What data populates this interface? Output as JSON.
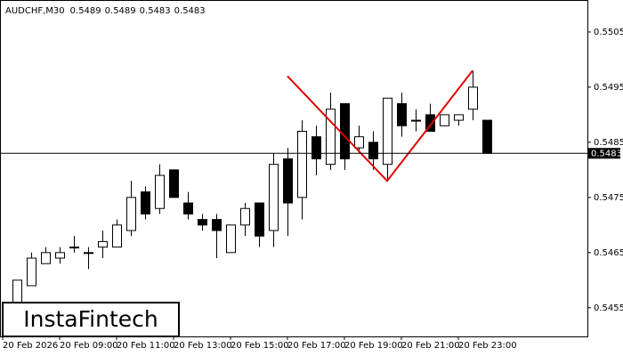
{
  "chart_data": {
    "type": "candlestick",
    "symbol": "AUDCHF,M30",
    "logo": "InstaFintech",
    "open": [
      0.5456,
      0.5459,
      0.5463,
      0.5464,
      0.5466,
      0.5465,
      0.5466,
      0.5466,
      0.5469,
      0.5476,
      0.5473,
      0.548,
      0.5474,
      0.5471,
      0.5471,
      0.5465,
      0.547,
      0.5474,
      0.5469,
      0.5482,
      0.5475,
      0.5486,
      0.5481,
      0.5492,
      0.5484,
      0.5485,
      0.5481,
      0.5492,
      0.5489,
      0.549,
      0.5488,
      0.5489,
      0.5491,
      0.5489
    ],
    "high": [
      0.546,
      0.5465,
      0.5466,
      0.5466,
      0.5468,
      0.5466,
      0.5469,
      0.5471,
      0.5478,
      0.5477,
      0.5481,
      0.548,
      0.5476,
      0.5472,
      0.5472,
      0.547,
      0.5474,
      0.5474,
      0.5483,
      0.5484,
      0.5489,
      0.5488,
      0.5494,
      0.5492,
      0.5488,
      0.5487,
      0.5493,
      0.5494,
      0.5491,
      0.5492,
      0.549,
      0.549,
      0.5498,
      0.5489
    ],
    "low": [
      0.5455,
      0.5459,
      0.5463,
      0.5463,
      0.5465,
      0.5462,
      0.5464,
      0.5466,
      0.5468,
      0.5471,
      0.5472,
      0.5475,
      0.5471,
      0.5469,
      0.5464,
      0.5465,
      0.5468,
      0.5466,
      0.5466,
      0.5468,
      0.5471,
      0.5479,
      0.548,
      0.548,
      0.5483,
      0.548,
      0.5478,
      0.5486,
      0.5487,
      0.5487,
      0.5488,
      0.5488,
      0.5489,
      0.5483
    ],
    "close": [
      0.546,
      0.5464,
      0.5465,
      0.5465,
      0.5466,
      0.5465,
      0.5467,
      0.547,
      0.5475,
      0.5472,
      0.5479,
      0.5475,
      0.5472,
      0.547,
      0.5469,
      0.547,
      0.5473,
      0.5468,
      0.5481,
      0.5474,
      0.5487,
      0.5482,
      0.5491,
      0.5482,
      0.5486,
      0.5482,
      0.5493,
      0.5488,
      0.5489,
      0.5487,
      0.549,
      0.549,
      0.5495,
      0.5483
    ],
    "xtick_labels": [
      "20 Feb 2026",
      "20 Feb 09:00",
      "20 Feb 11:00",
      "20 Feb 13:00",
      "20 Feb 15:00",
      "20 Feb 17:00",
      "20 Feb 19:00",
      "20 Feb 21:00",
      "20 Feb 23:00"
    ],
    "ylim": [
      0.54498,
      0.55108
    ],
    "yticks": [
      0.5455,
      0.5465,
      0.5475,
      0.5485,
      0.5495,
      0.5505
    ],
    "bull_color": "#ffffff",
    "bear_color": "#000000",
    "pattern": {
      "color": "#e00000",
      "values": [
        0.5497,
        0.5478,
        0.5498
      ]
    }
  }
}
